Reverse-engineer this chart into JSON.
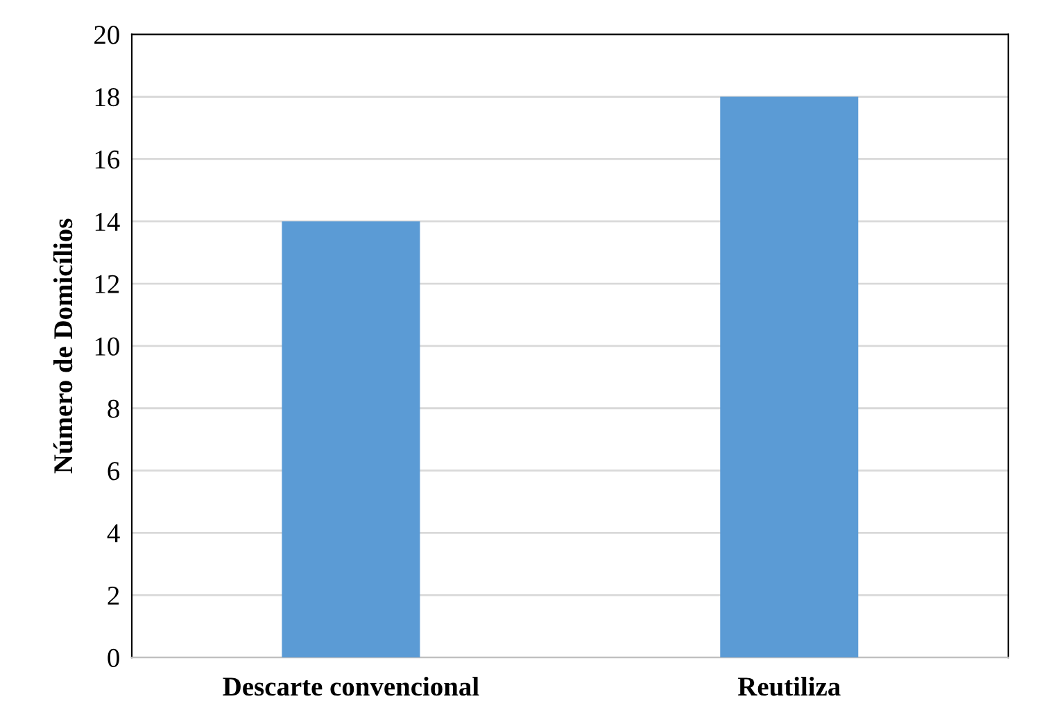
{
  "chart_data": {
    "type": "bar",
    "ylabel": "Número de Domicílios",
    "categories": [
      "Descarte convencional",
      "Reutiliza"
    ],
    "series": [
      {
        "color": "#5b9bd5",
        "values": [
          14,
          18
        ]
      }
    ],
    "ylim": [
      0,
      20
    ],
    "yticks": [
      0,
      2,
      4,
      6,
      8,
      10,
      12,
      14,
      16,
      18,
      20
    ],
    "grid": "y"
  }
}
